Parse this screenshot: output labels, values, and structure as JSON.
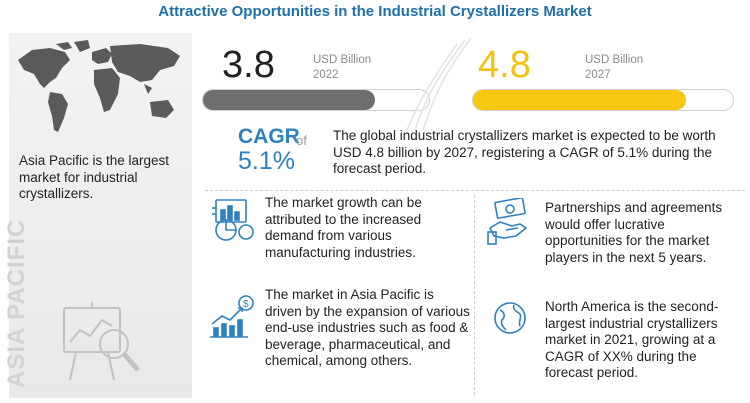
{
  "title": "Attractive Opportunities in the Industrial Crystallizers Market",
  "left_panel": {
    "text": "Asia Pacific is the largest market for industrial crystallizers.",
    "vertical_label": "ASIA PACIFIC",
    "map_icon": "world-map-icon",
    "chart_icon": "analytics-magnifier-icon"
  },
  "stats": {
    "value_2022": "3.8",
    "unit_2022": "USD Billion",
    "year_2022": "2022",
    "value_2027": "4.8",
    "unit_2027": "USD Billion",
    "year_2027": "2027",
    "bar_2022_fill": 0.76,
    "bar_2027_fill": 0.82,
    "bar_2022_color": "#6e6e6e",
    "bar_2027_color": "#f6c812"
  },
  "cagr": {
    "label": "CAGR",
    "of": "of",
    "value": "5.1%",
    "description": "The global industrial crystallizers market is expected to be worth USD 4.8 billion by 2027, registering a CAGR of 5.1% during the forecast period."
  },
  "points": [
    {
      "icon": "market-growth-icon",
      "text": "The market growth can be attributed to the increased demand from various manufacturing industries."
    },
    {
      "icon": "partnership-money-icon",
      "text": "Partnerships and agreements would offer lucrative opportunities for the market players in the next 5 years."
    },
    {
      "icon": "growth-chart-dollar-icon",
      "text": "The market in Asia Pacific is driven by the expansion of various end-use industries such as food & beverage, pharmaceutical, and chemical, among others."
    },
    {
      "icon": "globe-icon",
      "text": "North America is the second-largest industrial crystallizers market in 2021, growing at a CAGR of XX% during the forecast period."
    }
  ]
}
